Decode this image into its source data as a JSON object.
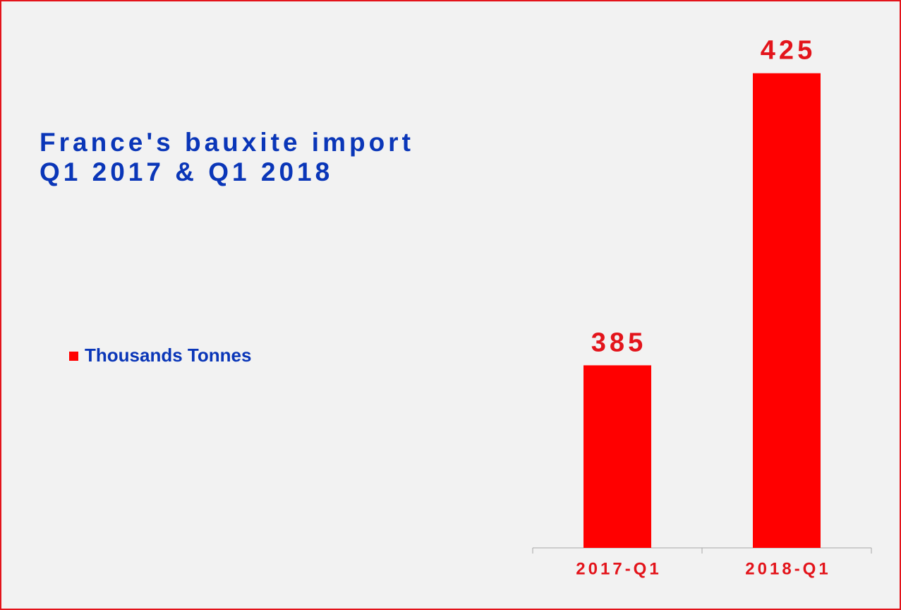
{
  "chart_data": {
    "type": "bar",
    "title": [
      "France's bauxite import",
      "Q1 2017 & Q1 2018"
    ],
    "categories": [
      "2017-Q1",
      "2018-Q1"
    ],
    "series": [
      {
        "name": "Thousands Tonnes",
        "color": "#ff0000",
        "values": [
          385,
          425
        ]
      }
    ],
    "ylim": [
      360,
      430
    ],
    "grid": false,
    "legend": "left"
  }
}
